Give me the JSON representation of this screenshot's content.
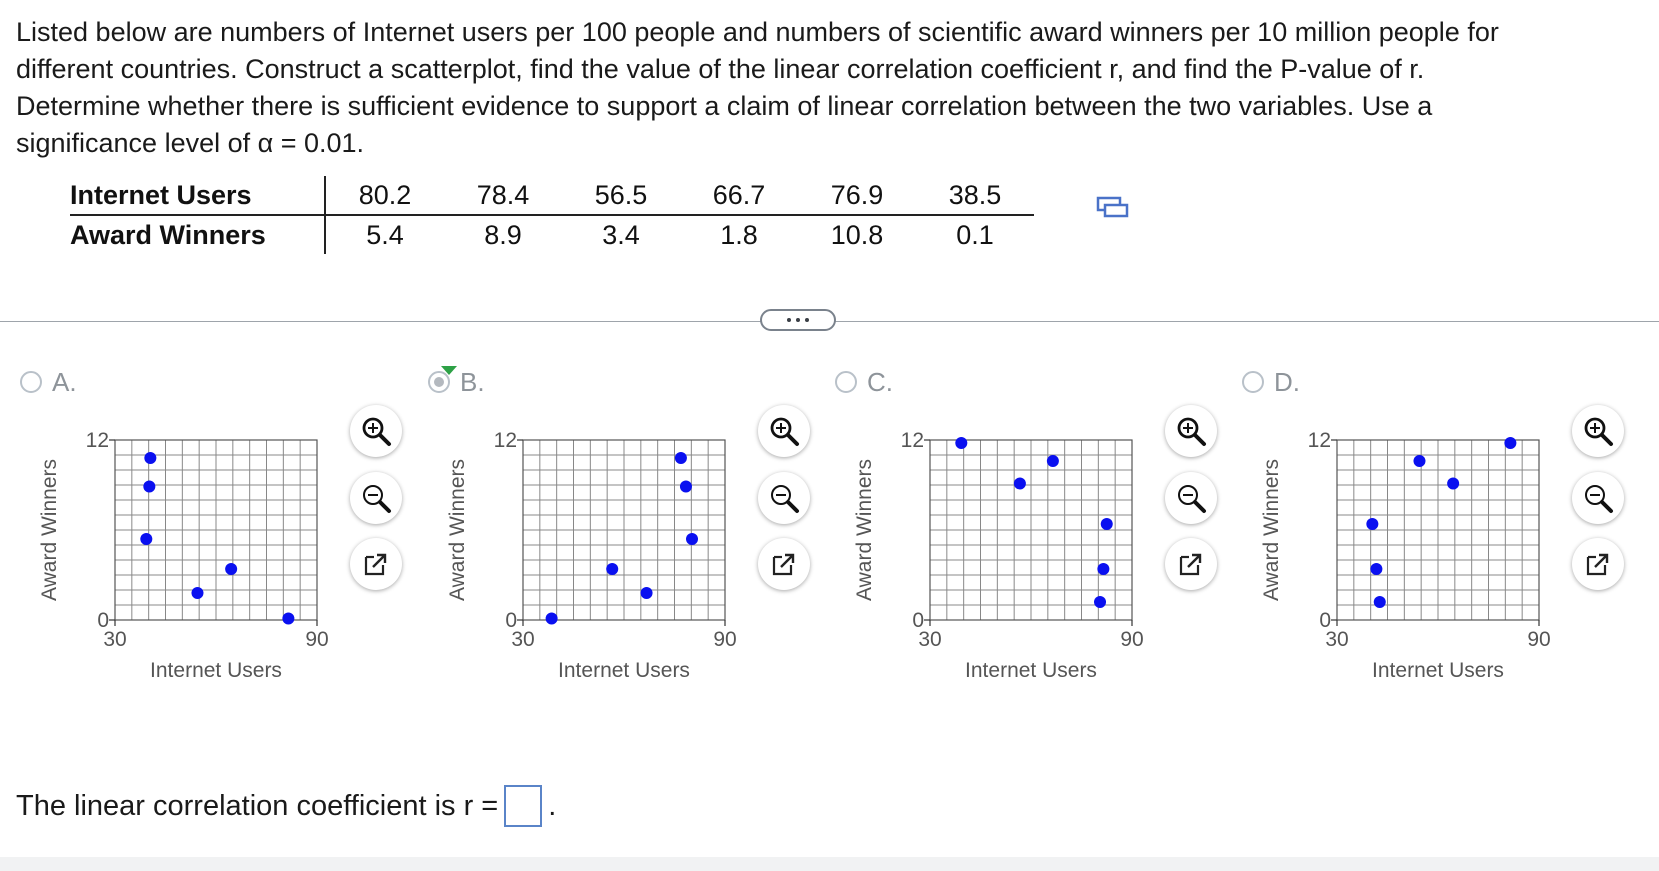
{
  "question": {
    "text": "Listed below are numbers of Internet users per 100 people and numbers of scientific award winners per 10 million people for different countries. Construct a scatterplot, find the value of the linear correlation coefficient r, and find the P-value of r. Determine whether there is sufficient evidence to support a claim of linear correlation between the two variables. Use a significance level of α = 0.01."
  },
  "table": {
    "row1_label": "Internet Users",
    "row2_label": "Award Winners",
    "internet_users": [
      "80.2",
      "78.4",
      "56.5",
      "66.7",
      "76.9",
      "38.5"
    ],
    "award_winners": [
      "5.4",
      "8.9",
      "3.4",
      "1.8",
      "10.8",
      "0.1"
    ]
  },
  "choices": [
    {
      "letter": "A.",
      "selected": false
    },
    {
      "letter": "B.",
      "selected": true
    },
    {
      "letter": "C.",
      "selected": false
    },
    {
      "letter": "D.",
      "selected": false
    }
  ],
  "icons": {
    "zoom_in": "zoom-in-icon",
    "zoom_out": "zoom-out-icon",
    "popout": "popout-icon",
    "copy": "copy-table-icon"
  },
  "colors": {
    "point": "#0a10f0",
    "grid": "#888888",
    "selected_tick": "#2da146",
    "answer_border": "#5a84c8"
  },
  "chart_data": [
    {
      "type": "scatter",
      "option": "A.",
      "xlabel": "Internet Users",
      "ylabel": "Award Winners",
      "xlim": [
        30,
        90
      ],
      "ylim": [
        0,
        12
      ],
      "xticks": [
        "30",
        "90"
      ],
      "yticks": [
        "0",
        "12"
      ],
      "points": [
        [
          40.5,
          10.8
        ],
        [
          40.2,
          8.9
        ],
        [
          39.3,
          5.4
        ],
        [
          54.5,
          1.8
        ],
        [
          64.5,
          3.4
        ],
        [
          81.5,
          0.1
        ]
      ]
    },
    {
      "type": "scatter",
      "option": "B.",
      "xlabel": "Internet Users",
      "ylabel": "Award Winners",
      "xlim": [
        30,
        90
      ],
      "ylim": [
        0,
        12
      ],
      "xticks": [
        "30",
        "90"
      ],
      "yticks": [
        "0",
        "12"
      ],
      "points": [
        [
          38.5,
          0.1
        ],
        [
          56.5,
          3.4
        ],
        [
          66.7,
          1.8
        ],
        [
          76.9,
          10.8
        ],
        [
          78.4,
          8.9
        ],
        [
          80.2,
          5.4
        ]
      ]
    },
    {
      "type": "scatter",
      "option": "C.",
      "xlabel": "Internet Users",
      "ylabel": "Award Winners",
      "xlim": [
        30,
        90
      ],
      "ylim": [
        0,
        12
      ],
      "xticks": [
        "30",
        "90"
      ],
      "yticks": [
        "0",
        "12"
      ],
      "points": [
        [
          39.3,
          11.8
        ],
        [
          56.7,
          9.1
        ],
        [
          66.5,
          10.6
        ],
        [
          80.5,
          1.2
        ],
        [
          81.5,
          3.4
        ],
        [
          82.5,
          6.4
        ]
      ]
    },
    {
      "type": "scatter",
      "option": "D.",
      "xlabel": "Internet Users",
      "ylabel": "Award Winners",
      "xlim": [
        30,
        90
      ],
      "ylim": [
        0,
        12
      ],
      "xticks": [
        "30",
        "90"
      ],
      "yticks": [
        "0",
        "12"
      ],
      "points": [
        [
          40.5,
          6.4
        ],
        [
          41.7,
          3.4
        ],
        [
          42.7,
          1.2
        ],
        [
          54.5,
          10.6
        ],
        [
          64.5,
          9.1
        ],
        [
          81.5,
          11.8
        ]
      ]
    }
  ],
  "answer": {
    "prefix": "The linear correlation coefficient is r =",
    "suffix": ".",
    "value": ""
  }
}
